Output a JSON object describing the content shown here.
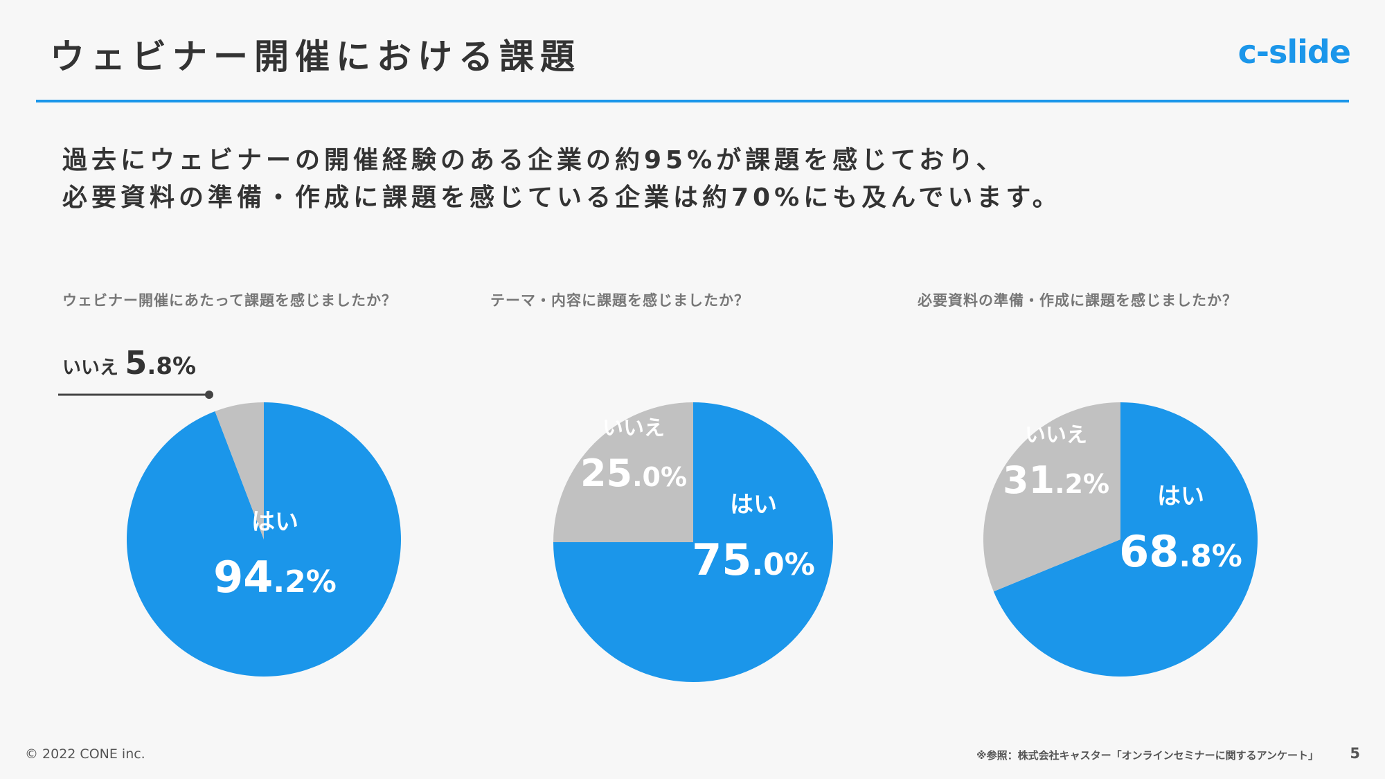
{
  "header": {
    "title": "ウェビナー開催における課題",
    "logo": "c-slide"
  },
  "lead": {
    "line1": "過去にウェビナーの開催経験のある企業の約95%が課題を感じており、",
    "line2": "必要資料の準備・作成に課題を感じている企業は約70%にも及んでいます。"
  },
  "colors": {
    "accent": "#1b96ea",
    "yes": "#1b96ea",
    "no": "#c1c1c1"
  },
  "chart_data": [
    {
      "type": "pie",
      "title": "ウェビナー開催にあたって課題を感じましたか？",
      "slices": [
        {
          "label": "はい",
          "value": 94.2,
          "int": "94",
          "dec": ".2%"
        },
        {
          "label": "いいえ",
          "value": 5.8,
          "int": "5",
          "dec": ".8%"
        }
      ]
    },
    {
      "type": "pie",
      "title": "テーマ・内容に課題を感じましたか？",
      "slices": [
        {
          "label": "はい",
          "value": 75.0,
          "int": "75",
          "dec": ".0%"
        },
        {
          "label": "いいえ",
          "value": 25.0,
          "int": "25",
          "dec": ".0%"
        }
      ]
    },
    {
      "type": "pie",
      "title": "必要資料の準備・作成に課題を感じましたか？",
      "slices": [
        {
          "label": "はい",
          "value": 68.8,
          "int": "68",
          "dec": ".8%"
        },
        {
          "label": "いいえ",
          "value": 31.2,
          "int": "31",
          "dec": ".2%"
        }
      ]
    }
  ],
  "footer": {
    "copyright": "© 2022 CONE inc.",
    "source": "※参照：株式会社キャスター「オンラインセミナーに関するアンケート」",
    "page": "5"
  }
}
